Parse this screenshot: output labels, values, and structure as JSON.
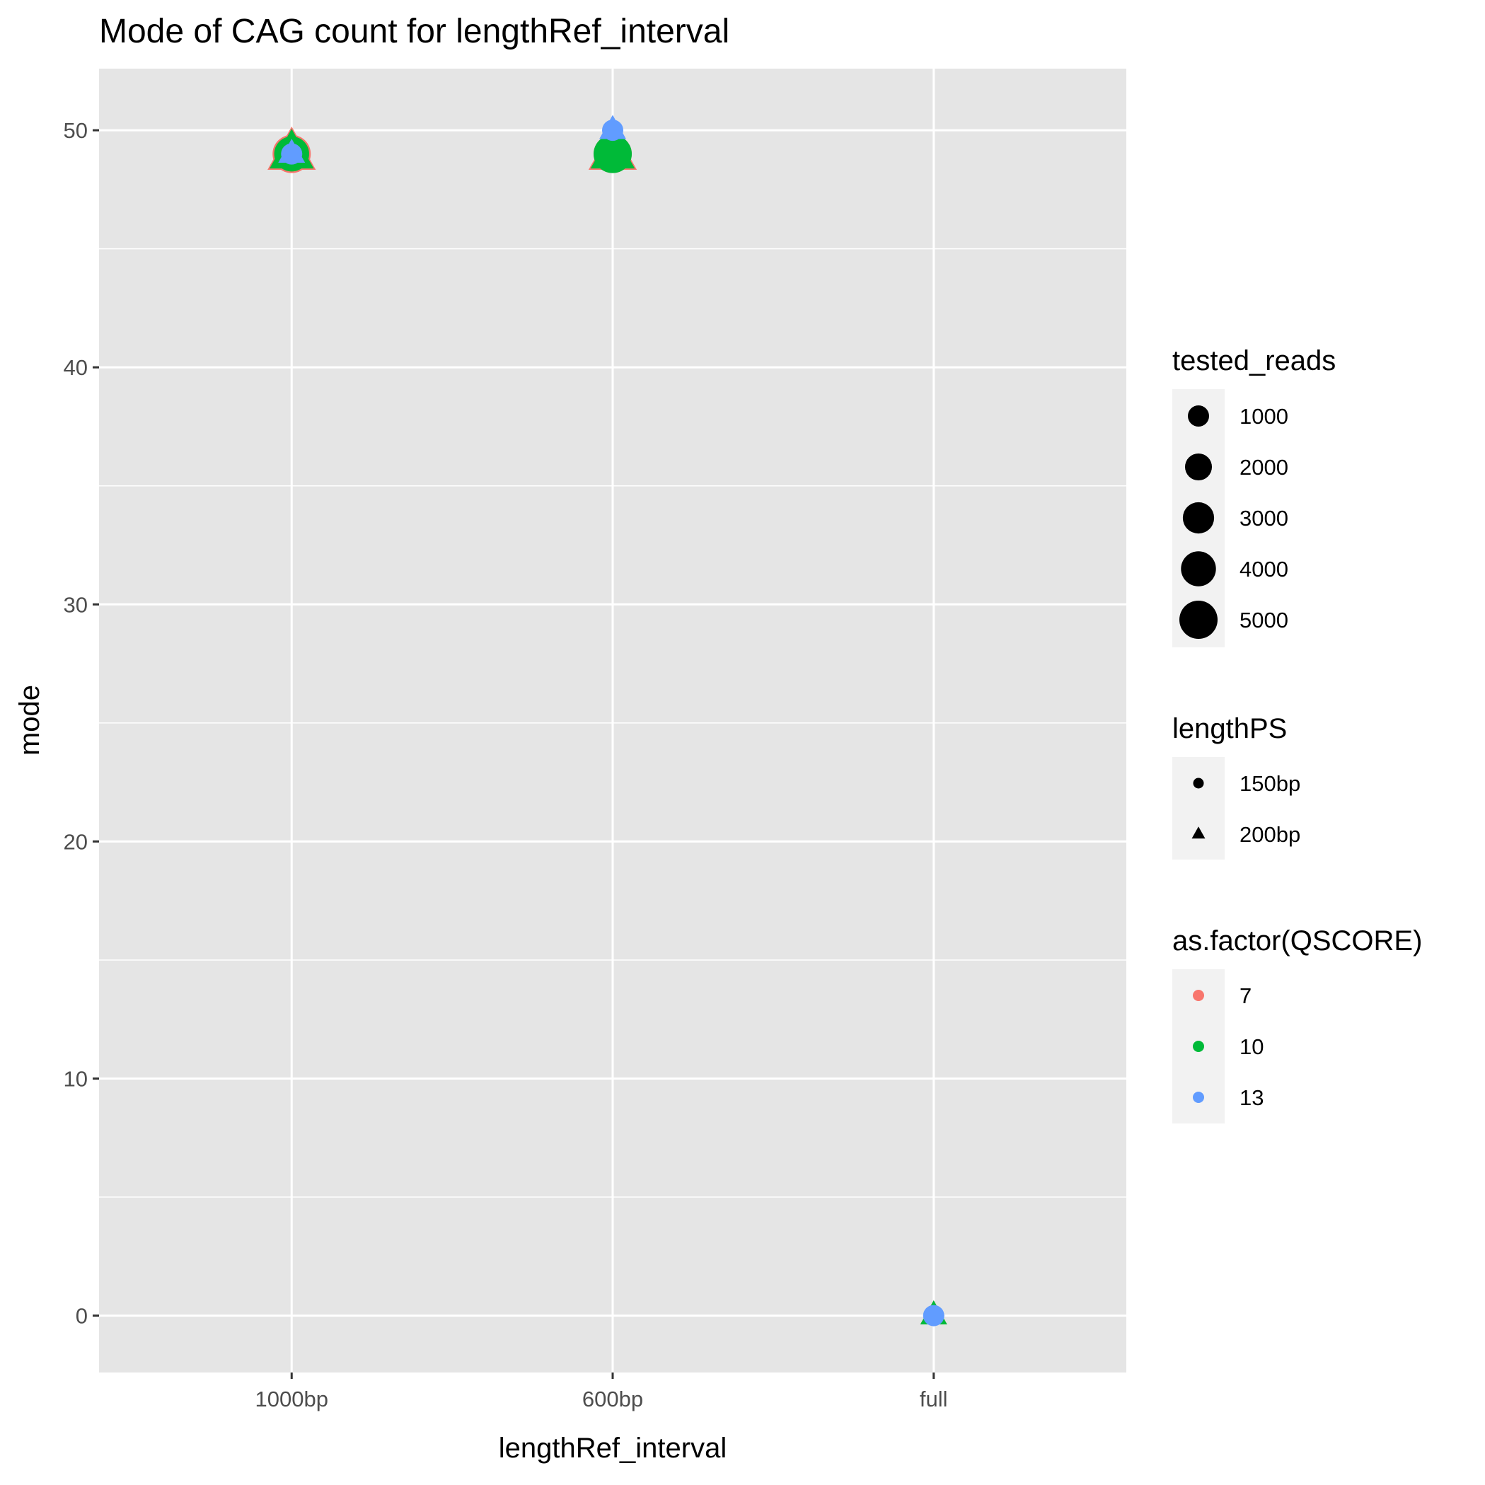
{
  "chart_data": {
    "type": "scatter",
    "title": "Mode of CAG count for lengthRef_interval",
    "xlabel": "lengthRef_interval",
    "ylabel": "mode",
    "categories": [
      "1000bp",
      "600bp",
      "full"
    ],
    "y_ticks": [
      "0",
      "10",
      "20",
      "30",
      "40",
      "50"
    ],
    "ylim": [
      -2.4,
      52.6
    ],
    "grid": true,
    "legend_position": "right",
    "legends": {
      "size": {
        "title": "tested_reads",
        "entries": [
          "1000",
          "2000",
          "3000",
          "4000",
          "5000"
        ],
        "values": [
          1000,
          2000,
          3000,
          4000,
          5000
        ]
      },
      "shape": {
        "title": "lengthPS",
        "entries": [
          "150bp",
          "200bp"
        ],
        "shapes": [
          "circle",
          "triangle"
        ]
      },
      "color": {
        "title": "as.factor(QSCORE)",
        "entries": [
          "7",
          "10",
          "13"
        ],
        "colors": [
          "#F8766D",
          "#00BA38",
          "#619CFF"
        ]
      }
    },
    "points": [
      {
        "x": "1000bp",
        "y": 49,
        "qscore": "7",
        "lengthPS": "200bp",
        "tested_reads": 5000
      },
      {
        "x": "1000bp",
        "y": 49,
        "qscore": "7",
        "lengthPS": "150bp",
        "tested_reads": 5000
      },
      {
        "x": "1000bp",
        "y": 49,
        "qscore": "10",
        "lengthPS": "200bp",
        "tested_reads": 4000
      },
      {
        "x": "1000bp",
        "y": 49,
        "qscore": "10",
        "lengthPS": "150bp",
        "tested_reads": 4000
      },
      {
        "x": "1000bp",
        "y": 49,
        "qscore": "13",
        "lengthPS": "200bp",
        "tested_reads": 1000
      },
      {
        "x": "1000bp",
        "y": 49,
        "qscore": "13",
        "lengthPS": "150bp",
        "tested_reads": 1000
      },
      {
        "x": "600bp",
        "y": 49,
        "qscore": "7",
        "lengthPS": "200bp",
        "tested_reads": 5000
      },
      {
        "x": "600bp",
        "y": 49,
        "qscore": "7",
        "lengthPS": "150bp",
        "tested_reads": 5000
      },
      {
        "x": "600bp",
        "y": 49,
        "qscore": "10",
        "lengthPS": "200bp",
        "tested_reads": 4000
      },
      {
        "x": "600bp",
        "y": 49,
        "qscore": "10",
        "lengthPS": "150bp",
        "tested_reads": 5000
      },
      {
        "x": "600bp",
        "y": 50,
        "qscore": "13",
        "lengthPS": "200bp",
        "tested_reads": 1000
      },
      {
        "x": "600bp",
        "y": 50,
        "qscore": "13",
        "lengthPS": "150bp",
        "tested_reads": 1000
      },
      {
        "x": "full",
        "y": 0,
        "qscore": "7",
        "lengthPS": "200bp",
        "tested_reads": 1000
      },
      {
        "x": "full",
        "y": 0,
        "qscore": "10",
        "lengthPS": "200bp",
        "tested_reads": 1000
      },
      {
        "x": "full",
        "y": 0,
        "qscore": "13",
        "lengthPS": "150bp",
        "tested_reads": 1000
      }
    ]
  }
}
